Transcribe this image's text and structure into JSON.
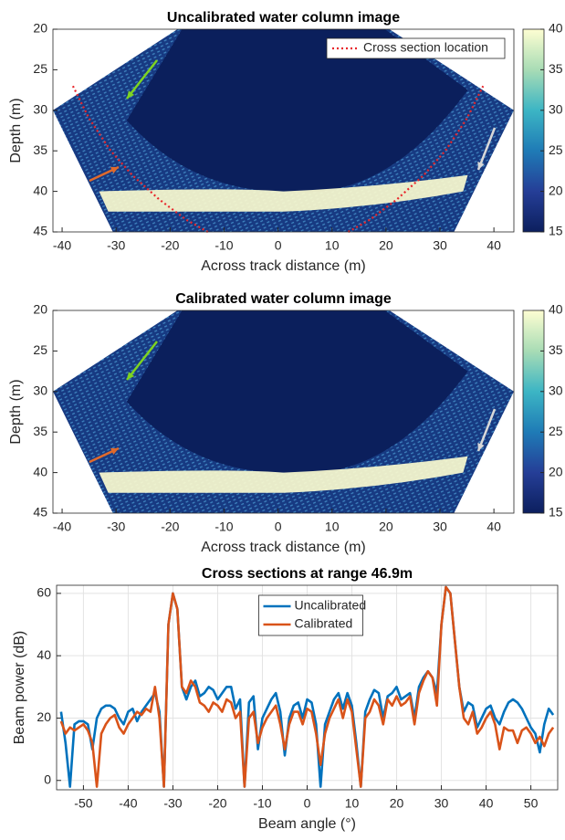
{
  "chart_data": [
    {
      "type": "image",
      "title": "Uncalibrated water column image",
      "xlabel": "Across track distance (m)",
      "ylabel": "Depth (m)",
      "xlim": [
        -41.7,
        43.7
      ],
      "xticks": [
        -40,
        -30,
        -20,
        -10,
        0,
        10,
        20,
        30,
        40
      ],
      "ylim": [
        20,
        45
      ],
      "yticks": [
        20,
        25,
        30,
        35,
        40,
        45
      ],
      "y_reversed": true,
      "grid": false,
      "clim": [
        15,
        40
      ],
      "cticks": [
        15,
        20,
        25,
        30,
        35,
        40
      ],
      "legend": "upper right",
      "series": [
        {
          "name": "Cross section location",
          "color": "#e8262b",
          "style": "dotted",
          "x": [
            -38,
            -35,
            -31,
            -27,
            -22,
            -17,
            -13,
            null,
            13,
            17,
            22,
            27,
            31,
            35,
            38
          ],
          "values": [
            27,
            31,
            35,
            38,
            41,
            43.5,
            45,
            null,
            45,
            43.5,
            41,
            38,
            35,
            31,
            27
          ]
        }
      ]
    },
    {
      "type": "image",
      "title": "Calibrated water column image",
      "xlabel": "Across track distance (m)",
      "ylabel": "Depth (m)",
      "xlim": [
        -41.7,
        43.7
      ],
      "xticks": [
        -40,
        -30,
        -20,
        -10,
        0,
        10,
        20,
        30,
        40
      ],
      "ylim": [
        20,
        45
      ],
      "yticks": [
        20,
        25,
        30,
        35,
        40,
        45
      ],
      "y_reversed": true,
      "grid": false,
      "clim": [
        15,
        40
      ],
      "cticks": [
        15,
        20,
        25,
        30,
        35,
        40
      ],
      "series": []
    },
    {
      "type": "line",
      "title": "Cross sections at range 46.9m",
      "xlabel": "Beam angle (°)",
      "ylabel": "Beam power (dB)",
      "xlim": [
        -56,
        56
      ],
      "xticks": [
        -50,
        -40,
        -30,
        -20,
        -10,
        0,
        10,
        20,
        30,
        40,
        50
      ],
      "ylim": [
        -3,
        62.6
      ],
      "yticks": [
        0,
        20,
        40,
        60
      ],
      "grid": true,
      "legend": "upper center",
      "x": [
        -55,
        -54,
        -53,
        -52,
        -51,
        -50,
        -49,
        -48,
        -47,
        -46,
        -45,
        -44,
        -43,
        -42,
        -41,
        -40,
        -39,
        -38,
        -37,
        -36,
        -35,
        -34,
        -33,
        -32,
        -31,
        -30,
        -29,
        -28,
        -27,
        -26,
        -25,
        -24,
        -23,
        -22,
        -21,
        -20,
        -19,
        -18,
        -17,
        -16,
        -15,
        -14,
        -13,
        -12,
        -11,
        -10,
        -9,
        -8,
        -7,
        -6,
        -5,
        -4,
        -3,
        -2,
        -1,
        0,
        1,
        2,
        3,
        4,
        5,
        6,
        7,
        8,
        9,
        10,
        11,
        12,
        13,
        14,
        15,
        16,
        17,
        18,
        19,
        20,
        21,
        22,
        23,
        24,
        25,
        26,
        27,
        28,
        29,
        30,
        31,
        32,
        33,
        34,
        35,
        36,
        37,
        38,
        39,
        40,
        41,
        42,
        43,
        44,
        45,
        46,
        47,
        48,
        49,
        50,
        51,
        52,
        53,
        54,
        55
      ],
      "series": [
        {
          "name": "Uncalibrated",
          "color": "#0072bd",
          "values": [
            22,
            12,
            -2,
            18,
            19,
            19,
            18,
            10,
            20,
            23,
            24,
            24,
            23,
            20,
            18,
            22,
            23,
            19,
            22,
            24,
            26,
            28,
            22,
            -2,
            50,
            60,
            55,
            30,
            26,
            30,
            32,
            27,
            28,
            30,
            29,
            26,
            28,
            30,
            30,
            23,
            26,
            -2,
            25,
            27,
            10,
            20,
            23,
            26,
            28,
            22,
            8,
            20,
            24,
            25,
            20,
            26,
            25,
            18,
            -2,
            18,
            22,
            26,
            28,
            23,
            28,
            24,
            12,
            -2,
            22,
            26,
            29,
            28,
            20,
            27,
            28,
            30,
            26,
            27,
            28,
            20,
            30,
            33,
            35,
            33,
            28,
            50,
            62,
            60,
            45,
            30,
            22,
            25,
            24,
            17,
            20,
            23,
            24,
            20,
            18,
            22,
            25,
            26,
            25,
            23,
            20,
            17,
            15,
            9,
            18,
            23,
            21
          ]
        },
        {
          "name": "Calibrated",
          "color": "#d95319",
          "values": [
            19,
            15,
            17,
            16,
            17,
            18,
            16,
            12,
            -2,
            15,
            18,
            20,
            21,
            17,
            15,
            18,
            20,
            22,
            21,
            23,
            22,
            30,
            20,
            -2,
            50,
            60,
            55,
            30,
            28,
            32,
            30,
            25,
            24,
            22,
            25,
            24,
            22,
            26,
            25,
            20,
            22,
            -2,
            20,
            22,
            12,
            17,
            20,
            22,
            24,
            18,
            10,
            18,
            22,
            22,
            18,
            23,
            22,
            15,
            5,
            15,
            20,
            23,
            26,
            20,
            26,
            22,
            10,
            -2,
            20,
            22,
            26,
            24,
            18,
            26,
            24,
            27,
            24,
            25,
            27,
            18,
            28,
            32,
            35,
            33,
            24,
            50,
            62,
            60,
            45,
            30,
            20,
            18,
            22,
            15,
            17,
            20,
            22,
            18,
            10,
            17,
            16,
            16,
            12,
            16,
            17,
            15,
            12,
            14,
            11,
            15,
            17
          ]
        }
      ]
    }
  ]
}
